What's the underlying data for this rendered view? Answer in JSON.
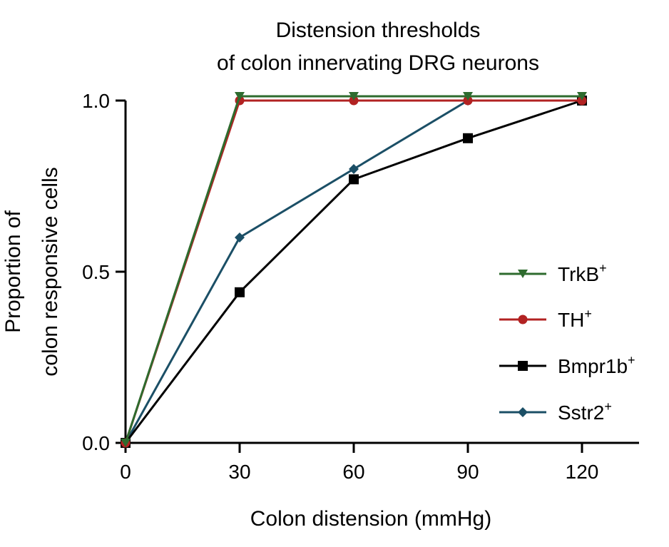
{
  "chart_data": {
    "type": "line",
    "title_line1": "Distension thresholds",
    "title_line2": "of colon innervating DRG neurons",
    "xlabel": "Colon distension (mmHg)",
    "ylabel_line1": "Proportion of",
    "ylabel_line2": "colon responsive cells",
    "x": [
      0,
      30,
      60,
      90,
      120
    ],
    "xlim": [
      0,
      135
    ],
    "ylim": [
      0,
      1
    ],
    "xticks": [
      "0",
      "30",
      "60",
      "90",
      "120"
    ],
    "yticks": [
      "0.0",
      "0.5",
      "1.0"
    ],
    "grid": false,
    "legend_position": "right",
    "series": [
      {
        "name": "TrkB",
        "sup": "+",
        "color": "#2e6b2e",
        "marker": "triangle-down",
        "values": [
          0,
          1,
          1,
          1,
          1
        ]
      },
      {
        "name": "TH",
        "sup": "+",
        "color": "#b22222",
        "marker": "circle",
        "values": [
          0,
          1,
          1,
          1,
          1
        ]
      },
      {
        "name": "Bmpr1b",
        "sup": "+",
        "color": "#000000",
        "marker": "square",
        "values": [
          0,
          0.44,
          0.77,
          0.89,
          1
        ]
      },
      {
        "name": "Sstr2",
        "sup": "+",
        "color": "#1b4f66",
        "marker": "diamond",
        "values": [
          0,
          0.6,
          0.8,
          1,
          1
        ]
      }
    ]
  }
}
